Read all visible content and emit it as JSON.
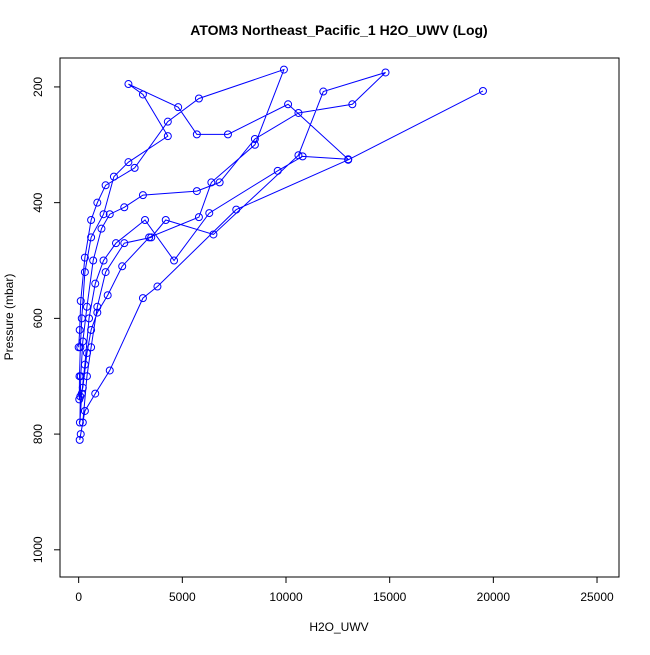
{
  "chart_data": {
    "type": "line",
    "title": "ATOM3 Northeast_Pacific_1 H2O_UWV (Log)",
    "x_label": "H2O_UWV",
    "y_label": "Pressure (mbar)",
    "x": [
      19500,
      13000,
      7600,
      3800,
      3100,
      1500,
      800,
      300,
      100,
      50,
      200,
      400,
      600,
      900,
      1300,
      2200,
      3500,
      4200,
      6500,
      10600,
      11800,
      14800,
      13200,
      10600,
      8500,
      6800,
      5700,
      3100,
      2200,
      1500,
      1100,
      700,
      400,
      200,
      100,
      80,
      60,
      150,
      300,
      500,
      800,
      1200,
      1800,
      3200,
      4600,
      6300,
      9600,
      10800,
      13000,
      10100,
      7200,
      5700,
      4800,
      2400,
      3100,
      4300,
      2400,
      1700,
      1200,
      600,
      300,
      150,
      80,
      40,
      30,
      200,
      400,
      600,
      900,
      1400,
      2100,
      3400,
      5800,
      6400,
      8500,
      9900,
      5800,
      4300,
      2700,
      1300,
      900,
      600,
      300,
      100,
      50,
      0
    ],
    "series": [
      {
        "color": "#0000ff",
        "values": [
          207,
          326,
          412,
          545,
          565,
          690,
          730,
          760,
          800,
          810,
          780,
          700,
          650,
          580,
          520,
          470,
          460,
          430,
          455,
          318,
          208,
          175,
          230,
          245,
          290,
          365,
          380,
          387,
          408,
          420,
          445,
          500,
          580,
          640,
          700,
          735,
          780,
          730,
          680,
          600,
          540,
          500,
          470,
          430,
          500,
          418,
          345,
          320,
          325,
          230,
          282,
          282,
          235,
          195,
          213,
          285,
          330,
          355,
          420,
          460,
          520,
          600,
          650,
          700,
          740,
          720,
          660,
          620,
          590,
          560,
          510,
          460,
          425,
          365,
          300,
          170,
          220,
          260,
          340,
          370,
          400,
          430,
          495,
          570,
          620,
          650
        ]
      }
    ],
    "xlim": [
      -900,
      26060
    ],
    "ylim": [
      1047,
      150
    ],
    "xticks": [
      0,
      5000,
      10000,
      15000,
      20000,
      25000
    ],
    "yticks": [
      200,
      400,
      600,
      800,
      1000
    ]
  }
}
